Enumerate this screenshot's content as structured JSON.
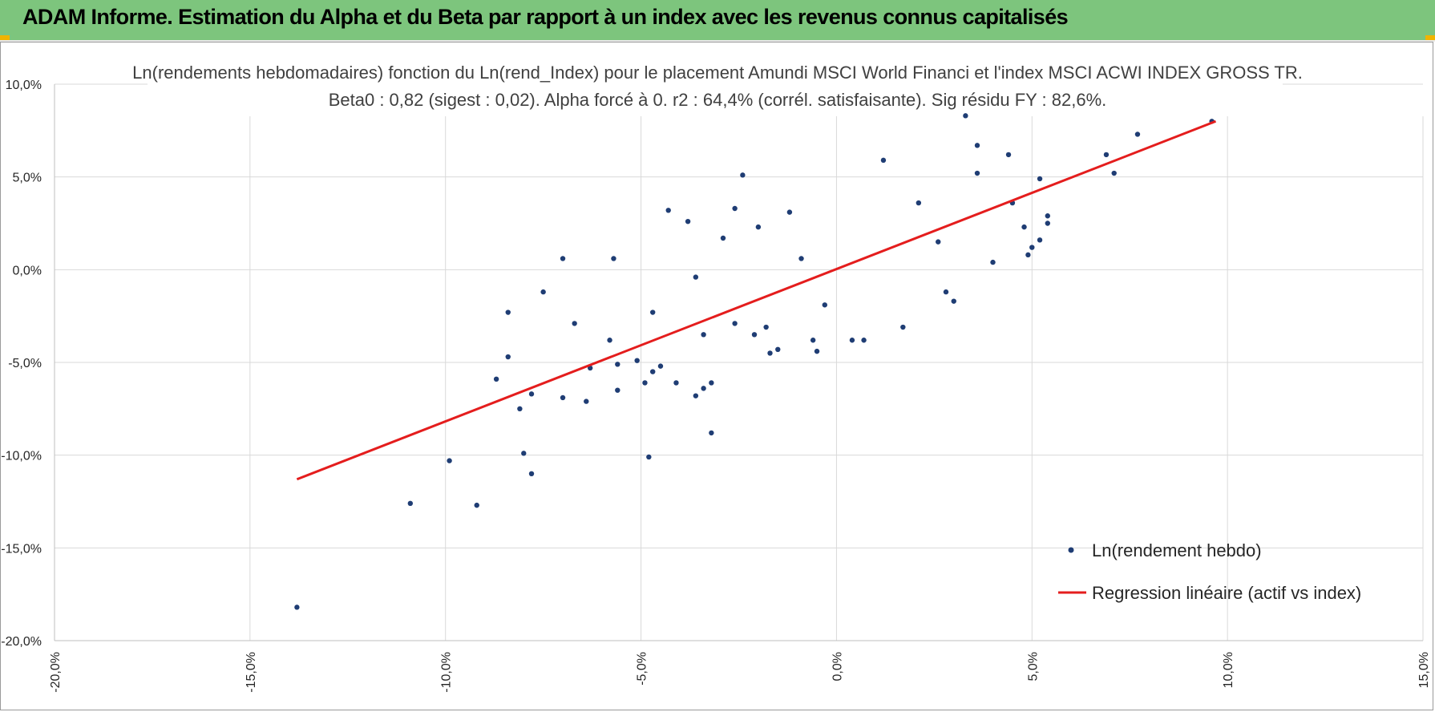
{
  "header": {
    "title": "ADAM Informe. Estimation du Alpha et du Beta par rapport à un index avec les revenus connus capitalisés",
    "background_color": "#7dc57d",
    "corner_color": "#f0b400"
  },
  "chart_data": {
    "type": "scatter",
    "title": "Ln(rendements hebdomadaires) fonction du Ln(rend_Index) pour le placement Amundi MSCI World Financi et l'index MSCI ACWI INDEX GROSS TR.",
    "subtitle": "Beta0 : 0,82 (sigest : 0,02).  Alpha forcé à 0. r2 : 64,4% (corrél. satisfaisante). Sig résidu FY : 82,6%.",
    "xlabel": "",
    "ylabel": "",
    "xlim": [
      -20,
      15
    ],
    "ylim": [
      -20,
      10
    ],
    "x_ticks": [
      -20,
      -15,
      -10,
      -5,
      0,
      5,
      10,
      15
    ],
    "y_ticks": [
      10,
      5,
      0,
      -5,
      -10,
      -15,
      -20
    ],
    "x_tick_labels": [
      "-20,0%",
      "-15,0%",
      "-10,0%",
      "-5,0%",
      "0,0%",
      "5,0%",
      "10,0%",
      "15,0%"
    ],
    "y_tick_labels": [
      "10,0%",
      "5,0%",
      "0,0%",
      "-5,0%",
      "-10,0%",
      "-15,0%",
      "-20,0%"
    ],
    "grid": true,
    "legend_position": "bottom-right",
    "series": [
      {
        "name": "Ln(rendement hebdo)",
        "kind": "scatter",
        "color": "#1f3d74",
        "points": [
          [
            -13.8,
            -18.2
          ],
          [
            -10.9,
            -12.6
          ],
          [
            -9.9,
            -10.3
          ],
          [
            -9.2,
            -12.7
          ],
          [
            -8.7,
            -5.9
          ],
          [
            -8.4,
            -4.7
          ],
          [
            -8.4,
            -2.3
          ],
          [
            -8.1,
            -7.5
          ],
          [
            -8.0,
            -9.9
          ],
          [
            -7.8,
            -11.0
          ],
          [
            -7.8,
            -6.7
          ],
          [
            -7.5,
            -1.2
          ],
          [
            -7.0,
            0.6
          ],
          [
            -7.0,
            -6.9
          ],
          [
            -6.7,
            -2.9
          ],
          [
            -6.3,
            -5.3
          ],
          [
            -6.4,
            -7.1
          ],
          [
            -5.8,
            -3.8
          ],
          [
            -5.7,
            0.6
          ],
          [
            -5.6,
            -5.1
          ],
          [
            -5.6,
            -6.5
          ],
          [
            -5.1,
            -4.9
          ],
          [
            -4.9,
            -6.1
          ],
          [
            -4.7,
            -5.5
          ],
          [
            -4.8,
            -10.1
          ],
          [
            -4.7,
            -2.3
          ],
          [
            -4.5,
            -5.2
          ],
          [
            -4.3,
            3.2
          ],
          [
            -4.1,
            -6.1
          ],
          [
            -3.8,
            2.6
          ],
          [
            -3.6,
            -6.8
          ],
          [
            -3.4,
            -6.4
          ],
          [
            -3.2,
            -6.1
          ],
          [
            -3.2,
            -8.8
          ],
          [
            -2.4,
            5.1
          ],
          [
            -2.6,
            3.3
          ],
          [
            -3.6,
            -0.4
          ],
          [
            -3.4,
            -3.5
          ],
          [
            -2.9,
            1.7
          ],
          [
            -2.6,
            -2.9
          ],
          [
            -2.0,
            2.3
          ],
          [
            -1.5,
            -4.3
          ],
          [
            -1.2,
            3.1
          ],
          [
            -0.9,
            0.6
          ],
          [
            -0.5,
            -4.4
          ],
          [
            1.2,
            5.9
          ],
          [
            2.1,
            3.6
          ],
          [
            2.6,
            1.5
          ],
          [
            3.3,
            8.3
          ],
          [
            3.6,
            6.7
          ],
          [
            3.6,
            5.2
          ],
          [
            4.0,
            0.4
          ],
          [
            4.4,
            6.2
          ],
          [
            4.5,
            3.6
          ],
          [
            4.8,
            2.3
          ],
          [
            4.9,
            0.8
          ],
          [
            5.0,
            1.2
          ],
          [
            5.2,
            4.9
          ],
          [
            5.2,
            1.6
          ],
          [
            5.4,
            2.5
          ],
          [
            5.4,
            2.9
          ],
          [
            6.9,
            6.2
          ],
          [
            7.1,
            5.2
          ],
          [
            7.7,
            7.3
          ],
          [
            9.6,
            8.0
          ],
          [
            -0.6,
            -3.8
          ],
          [
            0.4,
            -3.8
          ],
          [
            0.7,
            -3.8
          ],
          [
            1.7,
            -3.1
          ],
          [
            2.8,
            -1.2
          ],
          [
            3.0,
            -1.7
          ],
          [
            -1.8,
            -3.1
          ],
          [
            -2.1,
            -3.5
          ],
          [
            -1.7,
            -4.5
          ],
          [
            -0.3,
            -1.9
          ]
        ]
      },
      {
        "name": "Regression linéaire (actif vs index)",
        "kind": "line",
        "color": "#e41d1d",
        "points": [
          [
            -13.8,
            -11.3
          ],
          [
            9.7,
            8.0
          ]
        ]
      }
    ]
  }
}
